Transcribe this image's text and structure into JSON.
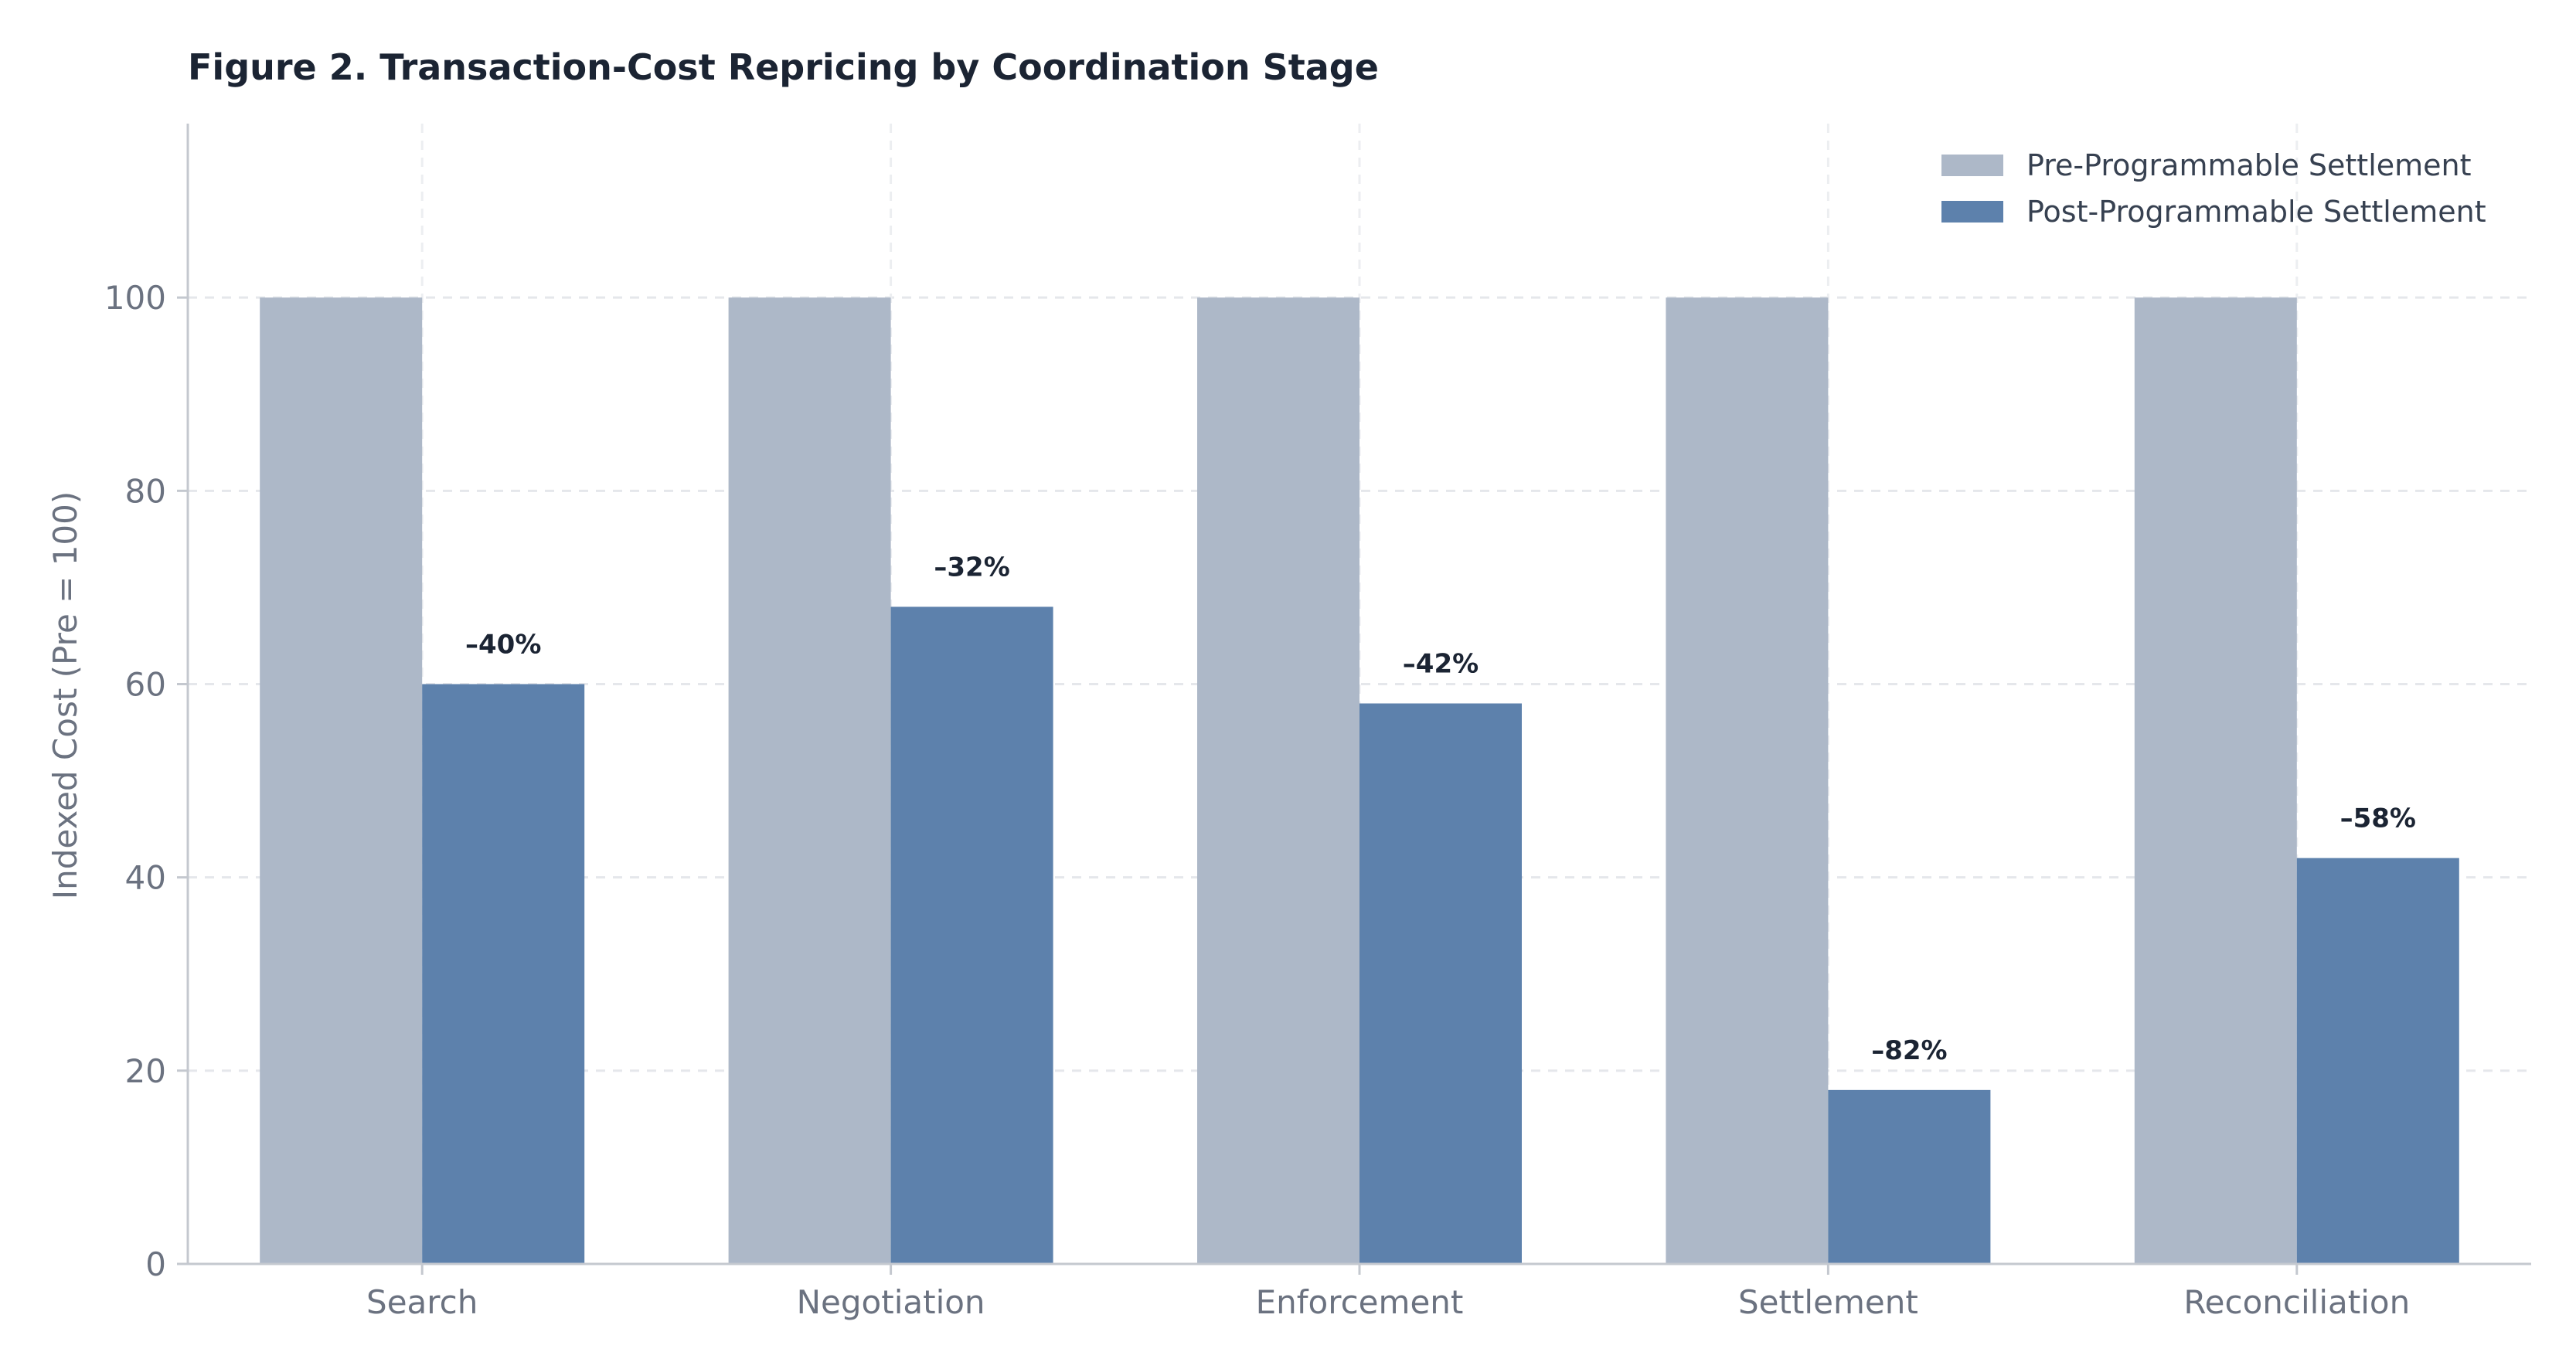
{
  "chart_data": {
    "type": "bar",
    "title": "Figure 2.  Transaction-Cost Repricing by Coordination Stage",
    "xlabel": "",
    "ylabel": "Indexed Cost (Pre = 100)",
    "ylim": [
      0,
      118
    ],
    "yticks": [
      0,
      20,
      40,
      60,
      80,
      100
    ],
    "grid": true,
    "legend_position": "top-right",
    "categories": [
      "Search",
      "Negotiation",
      "Enforcement",
      "Settlement",
      "Reconciliation"
    ],
    "series": [
      {
        "name": "Pre-Programmable Settlement",
        "color": "#adb8c8",
        "values": [
          100,
          100,
          100,
          100,
          100
        ]
      },
      {
        "name": "Post-Programmable Settlement",
        "color": "#5d81ac",
        "values": [
          60,
          68,
          58,
          18,
          42
        ]
      }
    ],
    "annotations": [
      "–40%",
      "–32%",
      "–42%",
      "–82%",
      "–58%"
    ]
  }
}
